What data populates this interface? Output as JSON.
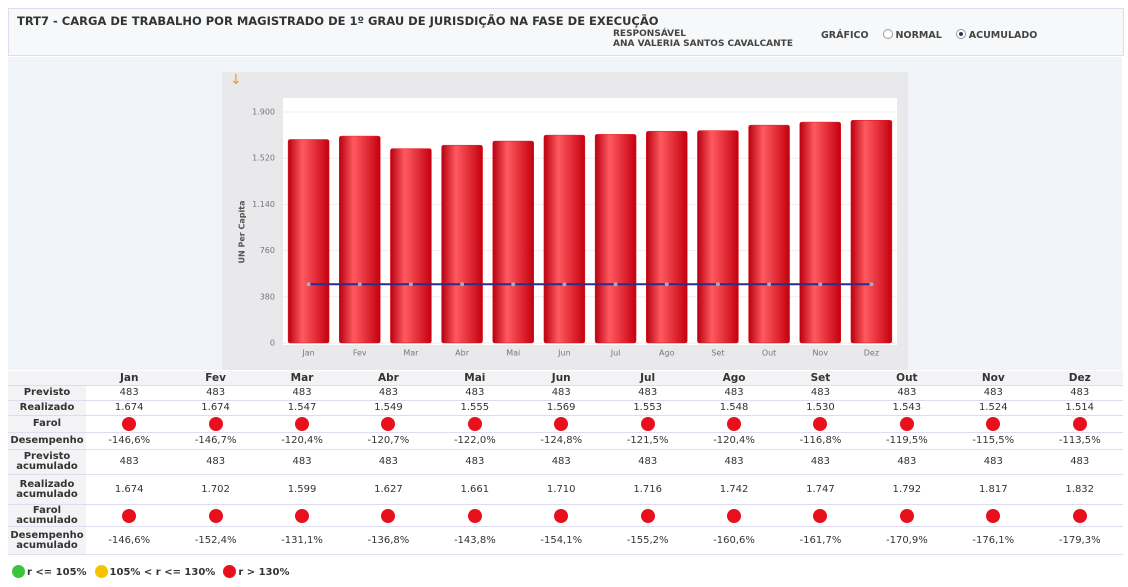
{
  "header": {
    "title": "TRT7 - CARGA DE TRABALHO POR MAGISTRADO DE 1º GRAU DE JURISDIÇÃO NA FASE DE EXECUÇÃO",
    "responsible_label": "RESPONSÁVEL",
    "responsible_name": "ANA VALERIA SANTOS CAVALCANTE",
    "chart_label": "GRÁFICO",
    "options": [
      "NORMAL",
      "ACUMULADO"
    ],
    "selected": 1
  },
  "chart_data": {
    "type": "bar",
    "y_label": "UN Per Capita",
    "categories": [
      "Jan",
      "Fev",
      "Mar",
      "Abr",
      "Mai",
      "Jun",
      "Jul",
      "Ago",
      "Set",
      "Out",
      "Nov",
      "Dez"
    ],
    "values": [
      1674,
      1702,
      1599,
      1627,
      1661,
      1710,
      1716,
      1742,
      1747,
      1792,
      1817,
      1832
    ],
    "color": "#e8101c",
    "target_values": [
      483,
      483,
      483,
      483,
      483,
      483,
      483,
      483,
      483,
      483,
      483,
      483
    ],
    "target_color": "#2b2d8a",
    "ylim": [
      0,
      1900
    ],
    "yticks": [
      0,
      380,
      760,
      {
        "value": 1140,
        "label": "1.140"
      },
      {
        "value": 1520,
        "label": "1.520"
      },
      {
        "value": 1900,
        "label": "1.900"
      }
    ],
    "grid": true
  },
  "table": {
    "rows": [
      {
        "label": "Previsto",
        "cells": [
          "483",
          "483",
          "483",
          "483",
          "483",
          "483",
          "483",
          "483",
          "483",
          "483",
          "483",
          "483"
        ]
      },
      {
        "label": "Realizado",
        "cells": [
          "1.674",
          "1.674",
          "1.547",
          "1.549",
          "1.555",
          "1.569",
          "1.553",
          "1.548",
          "1.530",
          "1.543",
          "1.524",
          "1.514"
        ]
      },
      {
        "label": "Farol",
        "color": "#e8101c"
      },
      {
        "label": "Desempenho",
        "cells": [
          "-146,6%",
          "-146,7%",
          "-120,4%",
          "-120,7%",
          "-122,0%",
          "-124,8%",
          "-121,5%",
          "-120,4%",
          "-116,8%",
          "-119,5%",
          "-115,5%",
          "-113,5%"
        ]
      },
      {
        "label": "Previsto acumulado",
        "cells": [
          "483",
          "483",
          "483",
          "483",
          "483",
          "483",
          "483",
          "483",
          "483",
          "483",
          "483",
          "483"
        ]
      },
      {
        "label": "Realizado acumulado",
        "cells": [
          "1.674",
          "1.702",
          "1.599",
          "1.627",
          "1.661",
          "1.710",
          "1.716",
          "1.742",
          "1.747",
          "1.792",
          "1.817",
          "1.832"
        ]
      },
      {
        "label": "Farol acumulado",
        "color": "#e8101c"
      },
      {
        "label": "Desempenho acumulado",
        "cells": [
          "-146,6%",
          "-152,4%",
          "-131,1%",
          "-136,8%",
          "-143,8%",
          "-154,1%",
          "-155,2%",
          "-160,6%",
          "-161,7%",
          "-170,9%",
          "-176,1%",
          "-179,3%"
        ]
      }
    ]
  },
  "legend": [
    {
      "label": "r <= 105%",
      "color": "#3cc43c"
    },
    {
      "label": "105% < r <= 130%",
      "color": "#f5c400"
    },
    {
      "label": "r > 130%",
      "color": "#e8101c"
    }
  ]
}
